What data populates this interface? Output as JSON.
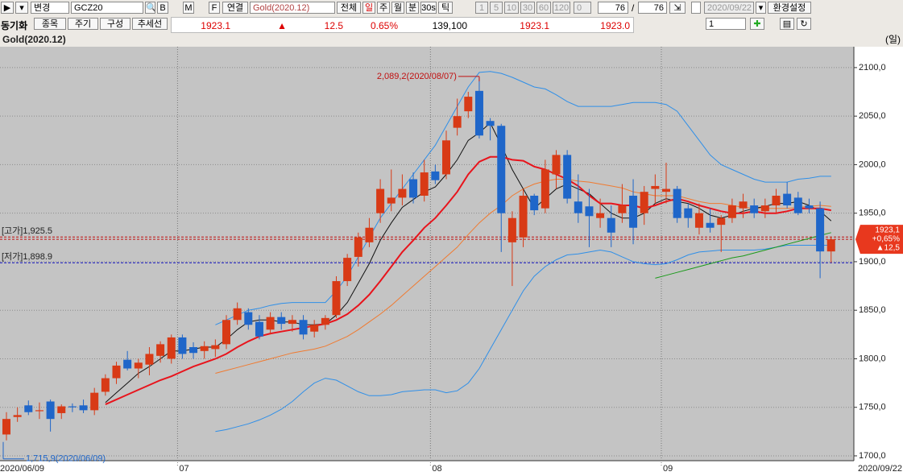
{
  "toolbar": {
    "mode": "변경",
    "code": "GCZ20",
    "b": "B",
    "m": "M",
    "f": "F",
    "link": "연결",
    "name": "Gold(2020.12)",
    "all": "전체",
    "periods": [
      "일",
      "주",
      "월",
      "분",
      "30s",
      "틱"
    ],
    "nums": [
      "1",
      "5",
      "10",
      "30",
      "60",
      "120"
    ],
    "spin": "0",
    "count": "76",
    "sep": "/",
    "total": "76",
    "date": "2020/09/22",
    "settings": "환경설정"
  },
  "row2": {
    "buttons": [
      "동기화",
      "종목",
      "주기",
      "구성",
      "추세선"
    ],
    "quote": {
      "price": "1923.1",
      "arrow": "▲",
      "change": "12.5",
      "pct": "0.65%",
      "volume": "139,100",
      "bid": "1923.1",
      "ask": "1923.0"
    },
    "layer": "1"
  },
  "chart_data": {
    "type": "candlestick",
    "title": "Gold(2020.12)",
    "unit": "(일)",
    "categories": [
      "2020/06/09",
      null,
      null,
      null,
      null,
      null,
      null,
      null,
      null,
      null,
      null,
      null,
      null,
      null,
      null,
      null,
      "07",
      null,
      null,
      null,
      null,
      null,
      null,
      null,
      null,
      null,
      null,
      null,
      null,
      null,
      null,
      null,
      null,
      null,
      null,
      null,
      null,
      null,
      null,
      "08",
      null,
      null,
      null,
      null,
      null,
      null,
      null,
      null,
      null,
      null,
      null,
      null,
      null,
      null,
      null,
      null,
      null,
      null,
      null,
      null,
      "09",
      null,
      null,
      null,
      null,
      null,
      null,
      null,
      null,
      null,
      null,
      null,
      null,
      null,
      null,
      "2020/09/22"
    ],
    "open": [
      1722,
      1740,
      1752,
      1746,
      1756,
      1744,
      1751,
      1752,
      1747,
      1766,
      1780,
      1799,
      1790,
      1794,
      1803,
      1800,
      1822,
      1812,
      1808,
      1810,
      1815,
      1840,
      1848,
      1838,
      1830,
      1843,
      1836,
      1840,
      1828,
      1835,
      1845,
      1880,
      1905,
      1920,
      1950,
      1960,
      1966,
      1985,
      1968,
      1993,
      1990,
      2038,
      2055,
      2076,
      2045,
      2040,
      1920,
      1925,
      1968,
      1955,
      1990,
      2010,
      1962,
      1957,
      1945,
      1945,
      1950,
      1968,
      1950,
      1975,
      1972,
      1975,
      1955,
      1935,
      1940,
      1938,
      1945,
      1955,
      1958,
      1952,
      1958,
      1970,
      1966,
      1958,
      1955,
      1910.6
    ],
    "high": [
      1745,
      1750,
      1757,
      1755,
      1758,
      1753,
      1754,
      1758,
      1770,
      1784,
      1797,
      1808,
      1800,
      1812,
      1818,
      1825,
      1825,
      1817,
      1818,
      1820,
      1845,
      1858,
      1852,
      1845,
      1848,
      1848,
      1845,
      1845,
      1840,
      1845,
      1885,
      1908,
      1930,
      1945,
      1985,
      1995,
      1990,
      1992,
      2005,
      2000,
      2035,
      2068,
      2075,
      2089.2,
      2048,
      2042,
      1952,
      1975,
      1970,
      2005,
      2015,
      2015,
      1990,
      1975,
      1965,
      1958,
      1980,
      1985,
      1978,
      1990,
      2002,
      1978,
      1960,
      1960,
      1955,
      1948,
      1965,
      1970,
      1965,
      1965,
      1975,
      1982,
      1972,
      1965,
      1962,
      1925.5
    ],
    "low": [
      1715.9,
      1735,
      1742,
      1738,
      1725,
      1738,
      1745,
      1744,
      1742,
      1762,
      1774,
      1788,
      1780,
      1783,
      1796,
      1795,
      1800,
      1800,
      1800,
      1802,
      1810,
      1835,
      1830,
      1820,
      1825,
      1830,
      1828,
      1820,
      1822,
      1830,
      1842,
      1875,
      1895,
      1915,
      1940,
      1952,
      1958,
      1960,
      1962,
      1980,
      1985,
      2030,
      2048,
      2027,
      2025,
      1910,
      1875,
      1915,
      1948,
      1950,
      1975,
      1960,
      1940,
      1915,
      1935,
      1915,
      1940,
      1918,
      1938,
      1960,
      1960,
      1940,
      1935,
      1928,
      1930,
      1910,
      1940,
      1945,
      1945,
      1945,
      1950,
      1955,
      1948,
      1950,
      1883,
      1898.9
    ],
    "close": [
      1738,
      1742,
      1745,
      1747,
      1738,
      1751,
      1750,
      1747,
      1765,
      1780,
      1793,
      1790,
      1796,
      1805,
      1815,
      1822,
      1805,
      1806,
      1813,
      1814,
      1840,
      1852,
      1835,
      1823,
      1843,
      1836,
      1840,
      1825,
      1835,
      1842,
      1880,
      1904,
      1925,
      1935,
      1975,
      1966,
      1975,
      1966,
      1992,
      1984,
      2025,
      2050,
      2070,
      2030,
      2040,
      1950,
      1945,
      1968,
      1953,
      1995,
      2010,
      1965,
      1950,
      1947,
      1950,
      1930,
      1958,
      1935,
      1972,
      1978,
      1975,
      1945,
      1945,
      1950,
      1935,
      1945,
      1958,
      1962,
      1950,
      1958,
      1968,
      1958,
      1950,
      1955,
      1910.6,
      1923.1
    ],
    "up_color": "#d83a16",
    "down_color": "#1f66c9",
    "overlays": [
      {
        "color": "#2f8fe8",
        "width": 1,
        "values": [
          null,
          null,
          null,
          null,
          null,
          null,
          null,
          null,
          null,
          null,
          null,
          null,
          null,
          null,
          null,
          null,
          null,
          null,
          null,
          1835,
          1840,
          1845,
          1850,
          1852,
          1855,
          1857,
          1858,
          1858,
          1858,
          1858,
          1870,
          1885,
          1905,
          1925,
          1945,
          1960,
          1975,
          1990,
          2005,
          2020,
          2040,
          2060,
          2080,
          2095,
          2096,
          2094,
          2090,
          2085,
          2080,
          2078,
          2072,
          2065,
          2060,
          2060,
          2060,
          2060,
          2062,
          2064,
          2064,
          2064,
          2062,
          2055,
          2040,
          2025,
          2010,
          2000,
          1995,
          1990,
          1985,
          1982,
          1982,
          1982,
          1985,
          1986,
          1988,
          1988
        ]
      },
      {
        "color": "#2f8fe8",
        "width": 1,
        "values": [
          null,
          null,
          null,
          null,
          null,
          null,
          null,
          null,
          null,
          null,
          null,
          null,
          null,
          null,
          null,
          null,
          null,
          null,
          null,
          1725,
          1727,
          1730,
          1733,
          1737,
          1742,
          1748,
          1756,
          1766,
          1775,
          1780,
          1778,
          1772,
          1766,
          1762,
          1762,
          1763,
          1766,
          1767,
          1768,
          1768,
          1765,
          1767,
          1775,
          1790,
          1810,
          1830,
          1850,
          1870,
          1885,
          1895,
          1902,
          1907,
          1908,
          1910,
          1912,
          1910,
          1905,
          1900,
          1898,
          1897,
          1898,
          1902,
          1907,
          1910,
          1911,
          1912,
          1912,
          1912,
          1912,
          1913,
          1915,
          1917,
          1917,
          1917,
          1917,
          1917
        ]
      },
      {
        "color": "#f07a30",
        "width": 1,
        "values": [
          null,
          null,
          null,
          null,
          null,
          null,
          null,
          null,
          null,
          null,
          null,
          null,
          null,
          null,
          null,
          null,
          null,
          null,
          null,
          1785,
          1788,
          1791,
          1794,
          1797,
          1800,
          1803,
          1806,
          1808,
          1810,
          1813,
          1818,
          1823,
          1830,
          1838,
          1846,
          1855,
          1865,
          1875,
          1885,
          1895,
          1905,
          1915,
          1928,
          1940,
          1950,
          1958,
          1968,
          1975,
          1980,
          1983,
          1985,
          1985,
          1983,
          1982,
          1980,
          1978,
          1976,
          1972,
          1970,
          1968,
          1968,
          1968,
          1965,
          1962,
          1960,
          1960,
          1958,
          1956,
          1955,
          1955,
          1955,
          1955,
          1956,
          1957,
          1958,
          1957
        ]
      },
      {
        "color": "#111111",
        "width": 1,
        "values": [
          null,
          null,
          null,
          null,
          null,
          null,
          null,
          null,
          null,
          1755,
          1765,
          1775,
          1785,
          1792,
          1800,
          1808,
          1808,
          1810,
          1812,
          1812,
          1820,
          1830,
          1838,
          1840,
          1840,
          1838,
          1838,
          1835,
          1835,
          1836,
          1845,
          1858,
          1878,
          1898,
          1922,
          1940,
          1956,
          1964,
          1972,
          1977,
          1990,
          2005,
          2025,
          2033,
          2043,
          2020,
          1995,
          1975,
          1955,
          1965,
          1975,
          1980,
          1975,
          1970,
          1960,
          1950,
          1945,
          1945,
          1950,
          1960,
          1965,
          1962,
          1960,
          1955,
          1948,
          1945,
          1948,
          1952,
          1955,
          1957,
          1960,
          1960,
          1962,
          1958,
          1952,
          1942
        ]
      },
      {
        "color": "#e8141c",
        "width": 2,
        "values": [
          null,
          null,
          null,
          null,
          null,
          null,
          null,
          null,
          null,
          1753,
          1758,
          1763,
          1768,
          1773,
          1778,
          1782,
          1787,
          1792,
          1796,
          1800,
          1805,
          1812,
          1818,
          1823,
          1826,
          1828,
          1830,
          1832,
          1834,
          1836,
          1840,
          1846,
          1855,
          1866,
          1880,
          1895,
          1910,
          1922,
          1935,
          1945,
          1958,
          1972,
          1990,
          2003,
          2008,
          2008,
          2005,
          2004,
          1998,
          1995,
          1990,
          1985,
          1978,
          1968,
          1960,
          1960,
          1958,
          1958,
          1955,
          1958,
          1962,
          1965,
          1962,
          1958,
          1955,
          1952,
          1950,
          1950,
          1952,
          1950,
          1950,
          1952,
          1955,
          1955,
          1955,
          1953
        ]
      },
      {
        "color": "#1a9a1a",
        "width": 1,
        "values": [
          null,
          null,
          null,
          null,
          null,
          null,
          null,
          null,
          null,
          null,
          null,
          null,
          null,
          null,
          null,
          null,
          null,
          null,
          null,
          null,
          null,
          null,
          null,
          null,
          null,
          null,
          null,
          null,
          null,
          null,
          null,
          null,
          null,
          null,
          null,
          null,
          null,
          null,
          null,
          null,
          null,
          null,
          null,
          null,
          null,
          null,
          null,
          null,
          null,
          null,
          null,
          null,
          null,
          null,
          null,
          null,
          null,
          null,
          null,
          1883,
          1886,
          1889,
          1892,
          1895,
          1898,
          1901,
          1904,
          1906,
          1909,
          1912,
          1915,
          1918,
          1921,
          1924,
          1927,
          1930
        ]
      }
    ],
    "price_lines": [
      {
        "label": "[고가]1,925.5",
        "value": 1925.5,
        "color": "#c01010"
      },
      {
        "label": "[저가]1,898.9",
        "value": 1898.9,
        "color": "#1010c0"
      }
    ],
    "annotations": [
      "2,089,2(2020/08/07)",
      "1,715,9(2020/06/09)"
    ],
    "last_box": [
      "1923,1",
      "+0,65%",
      "▲12,5"
    ],
    "ylim": [
      1695,
      2121.5
    ],
    "yticks": [
      {
        "value": 1700,
        "label": "1700,0"
      },
      {
        "value": 1750,
        "label": "1750,0"
      },
      {
        "value": 1800,
        "label": "1800,0"
      },
      {
        "value": 1850,
        "label": "1850,0"
      },
      {
        "value": 1900,
        "label": "1900,0"
      },
      {
        "value": 1950,
        "label": "1950,0"
      },
      {
        "value": 2000,
        "label": "2000,0"
      },
      {
        "value": 2050,
        "label": "2050,0"
      },
      {
        "value": 2100,
        "label": "2100,0"
      }
    ],
    "grid": true
  }
}
